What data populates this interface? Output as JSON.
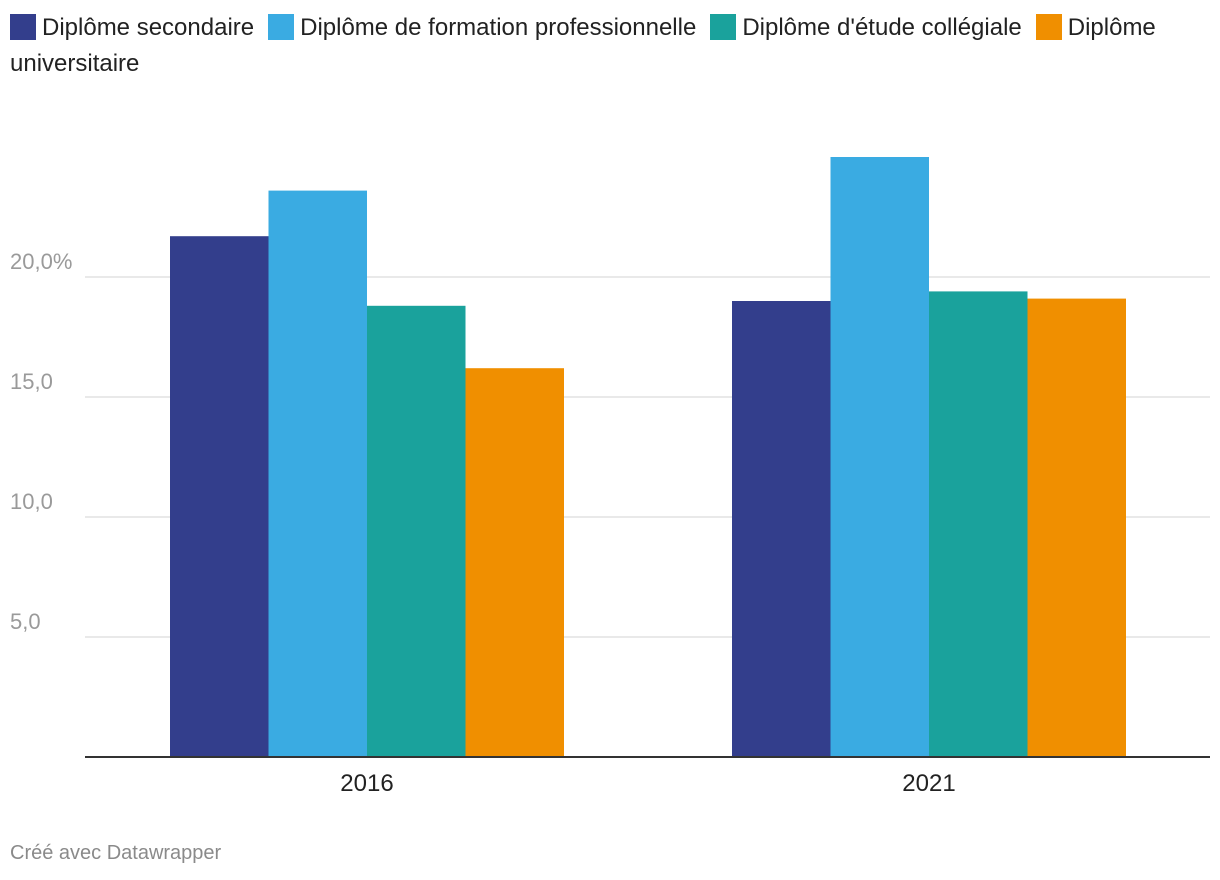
{
  "chart_data": {
    "type": "bar",
    "categories": [
      "2016",
      "2021"
    ],
    "series": [
      {
        "name": "Diplôme secondaire",
        "color": "#333e8c",
        "values": [
          21.7,
          19.0
        ]
      },
      {
        "name": "Diplôme de formation professionnelle",
        "color": "#3aabe2",
        "values": [
          23.6,
          25.0
        ]
      },
      {
        "name": "Diplôme d'étude collégiale",
        "color": "#1aa29c",
        "values": [
          18.8,
          19.4
        ]
      },
      {
        "name": "Diplôme universitaire",
        "color": "#f08f00",
        "values": [
          16.2,
          19.1
        ]
      }
    ],
    "ylim": [
      0,
      26
    ],
    "yticks": [
      5,
      10,
      15,
      20
    ],
    "ytick_labels": [
      "5,0",
      "10,0",
      "15,0",
      "20,0%"
    ],
    "grid": true,
    "legend_position": "top-left"
  },
  "footer": {
    "credit": "Créé avec Datawrapper"
  }
}
